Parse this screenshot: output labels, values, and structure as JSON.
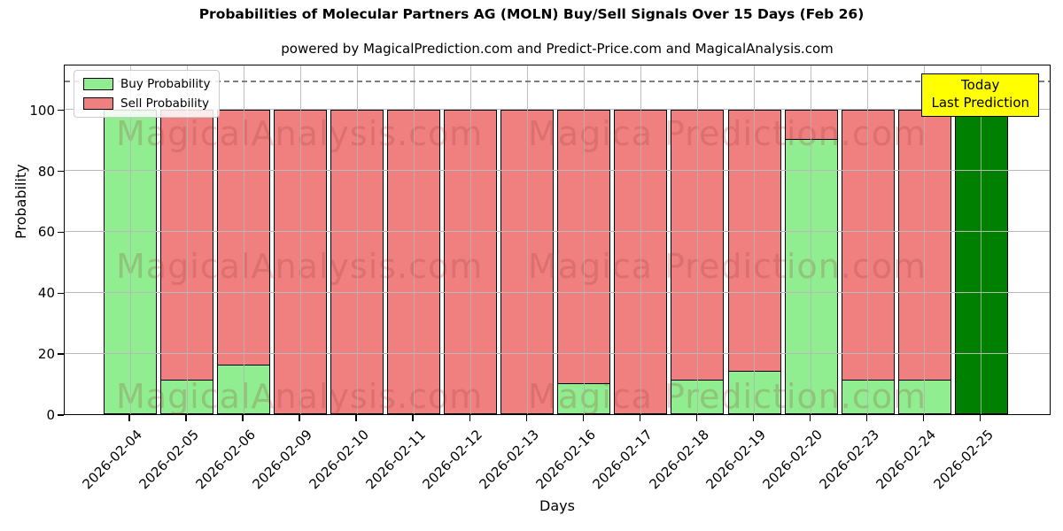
{
  "header": {
    "title": "Probabilities of Molecular Partners AG (MOLN) Buy/Sell Signals Over 15 Days (Feb 26)",
    "subtitle": "powered by MagicalPrediction.com and Predict-Price.com and MagicalAnalysis.com"
  },
  "chart_data": {
    "type": "bar",
    "stacked": true,
    "title": "Probabilities of Molecular Partners AG (MOLN) Buy/Sell Signals Over 15 Days (Feb 26)",
    "subtitle": "powered by MagicalPrediction.com and Predict-Price.com and MagicalAnalysis.com",
    "xlabel": "Days",
    "ylabel": "Probability",
    "ylim": [
      0,
      115
    ],
    "yticks": [
      0,
      20,
      40,
      60,
      80,
      100
    ],
    "grid": true,
    "dashed_guide_y": 110,
    "legend_position": "upper left",
    "categories": [
      "2026-02-04",
      "2026-02-05",
      "2026-02-06",
      "2026-02-09",
      "2026-02-10",
      "2026-02-11",
      "2026-02-12",
      "2026-02-13",
      "2026-02-16",
      "2026-02-17",
      "2026-02-18",
      "2026-02-19",
      "2026-02-20",
      "2026-02-23",
      "2026-02-24",
      "2026-02-25"
    ],
    "series": [
      {
        "name": "Buy Probability",
        "color": "#90EE90",
        "values": [
          100,
          11,
          16,
          0,
          0,
          0,
          0,
          0,
          10,
          0,
          11,
          14,
          90,
          11,
          11,
          100
        ]
      },
      {
        "name": "Sell Probability",
        "color": "#F08080",
        "values": [
          0,
          89,
          84,
          100,
          100,
          100,
          100,
          100,
          90,
          100,
          89,
          86,
          10,
          89,
          89,
          0
        ]
      }
    ],
    "highlight_bar": {
      "category": "2026-02-25",
      "color": "#008000"
    },
    "annotation_box": {
      "lines": [
        "Today",
        "Last Prediction"
      ],
      "bg_color": "#FFFF00",
      "border_color": "#000000"
    },
    "watermarks": {
      "texts": [
        "MagicalAnalysis.com",
        "Magica Prediction.com"
      ],
      "color": "rgba(150,50,50,0.22)"
    },
    "colors": {
      "edge": "#000000",
      "grid": "#b9b9b9",
      "dashed_line": "#7f7f7f"
    }
  }
}
